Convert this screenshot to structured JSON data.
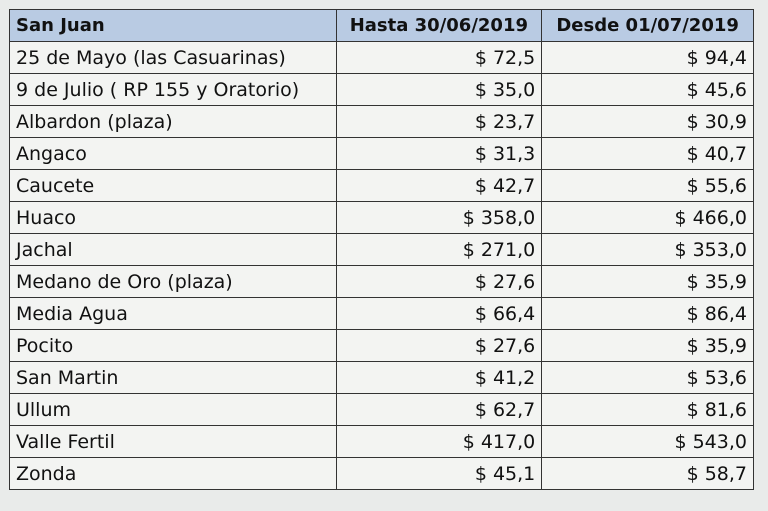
{
  "table": {
    "headers": [
      "San Juan",
      "Hasta 30/06/2019",
      "Desde 01/07/2019"
    ],
    "rows": [
      [
        "25 de Mayo (las Casuarinas)",
        "$ 72,5",
        "$ 94,4"
      ],
      [
        "9 de Julio ( RP 155 y Oratorio)",
        "$ 35,0",
        "$ 45,6"
      ],
      [
        "Albardon (plaza)",
        "$ 23,7",
        "$ 30,9"
      ],
      [
        "Angaco",
        "$ 31,3",
        "$ 40,7"
      ],
      [
        "Caucete",
        "$ 42,7",
        "$ 55,6"
      ],
      [
        "Huaco",
        "$ 358,0",
        "$ 466,0"
      ],
      [
        "Jachal",
        "$ 271,0",
        "$ 353,0"
      ],
      [
        "Medano de Oro (plaza)",
        "$ 27,6",
        "$ 35,9"
      ],
      [
        "Media Agua",
        "$ 66,4",
        "$ 86,4"
      ],
      [
        "Pocito",
        "$ 27,6",
        "$ 35,9"
      ],
      [
        "San Martin",
        "$ 41,2",
        "$ 53,6"
      ],
      [
        "Ullum",
        "$ 62,7",
        "$ 81,6"
      ],
      [
        "Valle Fertil",
        "$ 417,0",
        "$ 543,0"
      ],
      [
        "Zonda",
        "$ 45,1",
        "$ 58,7"
      ]
    ]
  }
}
